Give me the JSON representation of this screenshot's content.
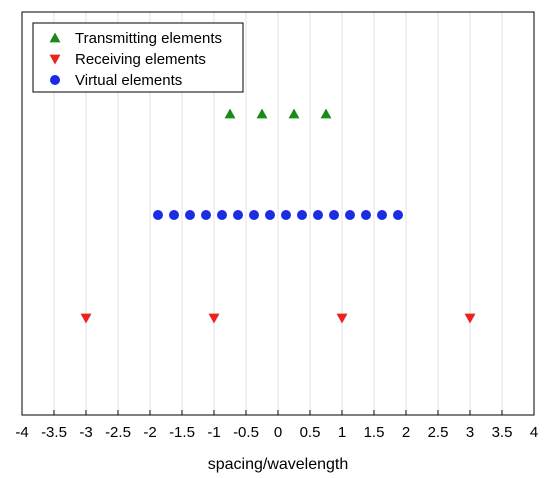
{
  "chart_data": {
    "type": "scatter",
    "title": "",
    "xlabel": "spacing/wavelength",
    "ylabel": "",
    "xlim": [
      -4,
      4
    ],
    "xticks": [
      "-4",
      "-3.5",
      "-3",
      "-2.5",
      "-2",
      "-1.5",
      "-1",
      "-0.5",
      "0",
      "0.5",
      "1",
      "1.5",
      "2",
      "2.5",
      "3",
      "3.5",
      "4"
    ],
    "grid": "vertical",
    "legend_position": "top-left",
    "series": [
      {
        "name": "Transmitting elements",
        "marker": "triangle-up",
        "color": "#1a8a1a",
        "x": [
          -0.75,
          -0.25,
          0.25,
          0.75
        ],
        "row": 1
      },
      {
        "name": "Receiving elements",
        "marker": "triangle-down",
        "color": "#e8251f",
        "x": [
          -3,
          -1,
          1,
          3
        ],
        "row": 3
      },
      {
        "name": "Virtual elements",
        "marker": "circle",
        "color": "#1b2be8",
        "x": [
          -1.875,
          -1.625,
          -1.375,
          -1.125,
          -0.875,
          -0.625,
          -0.375,
          -0.125,
          0.125,
          0.375,
          0.625,
          0.875,
          1.125,
          1.375,
          1.625,
          1.875
        ],
        "row": 2
      }
    ]
  }
}
